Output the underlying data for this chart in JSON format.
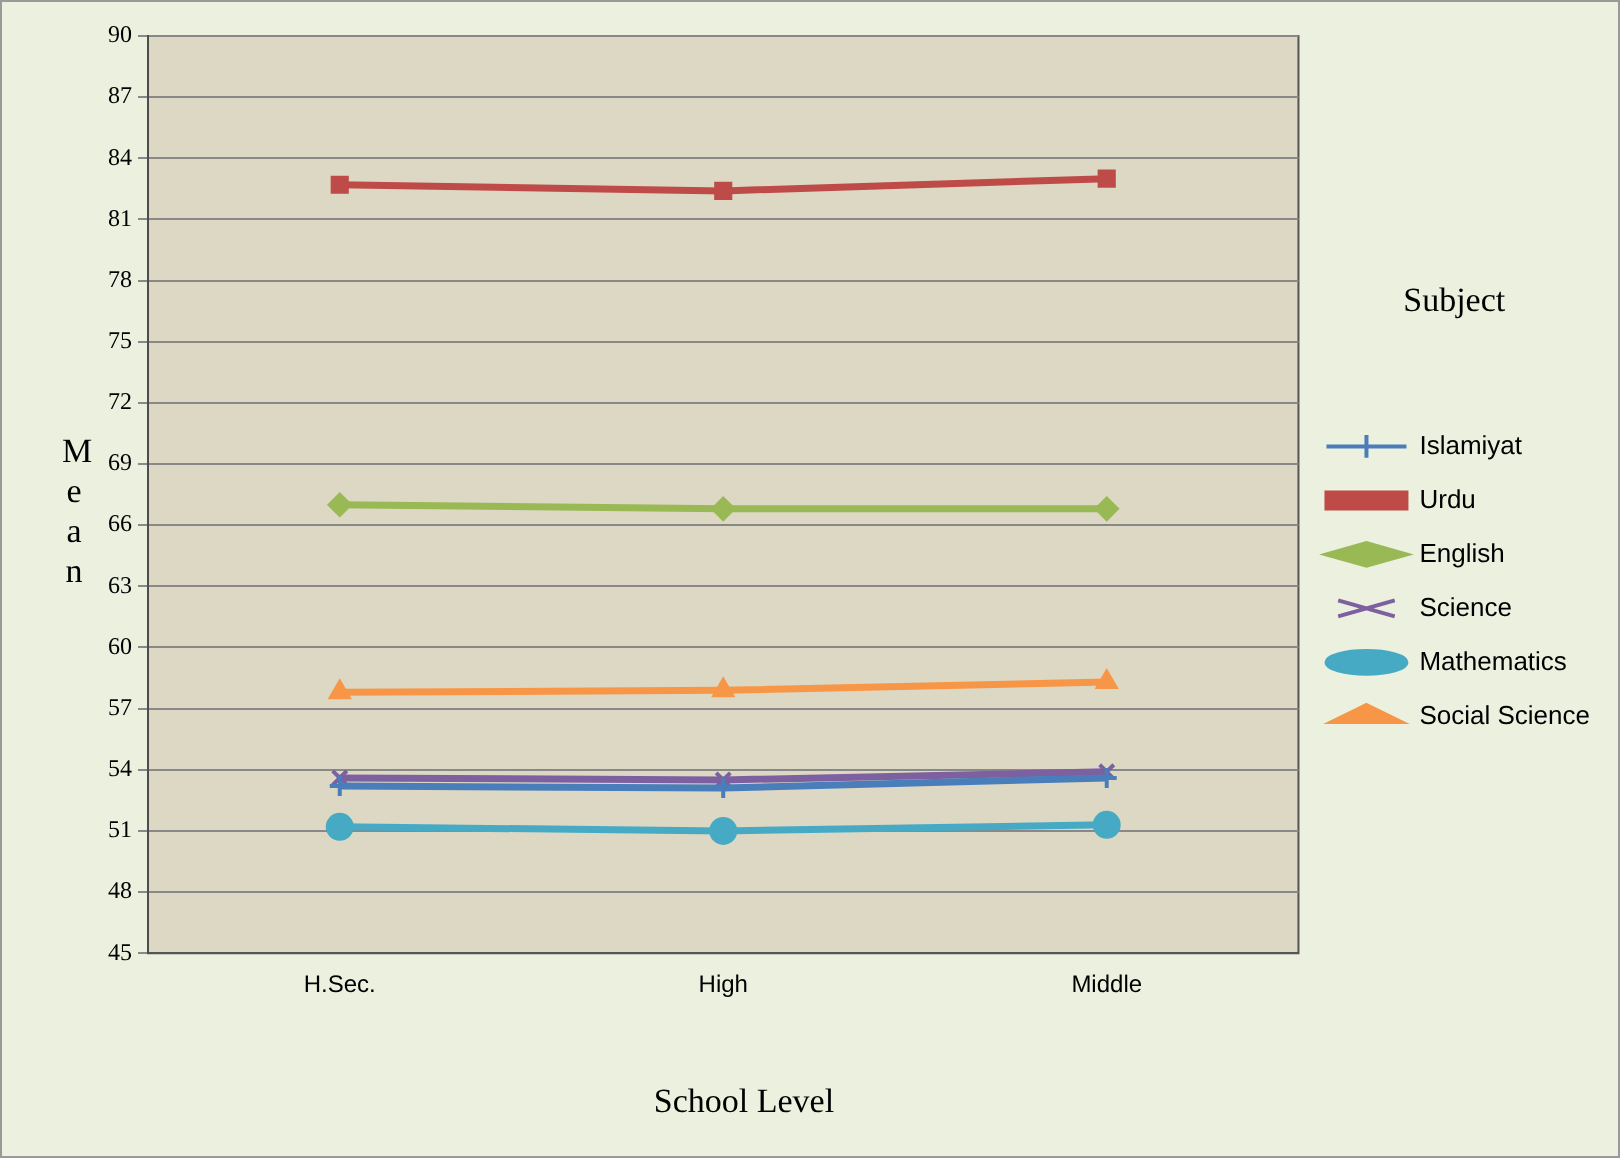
{
  "chart_data": {
    "type": "line",
    "xlabel": "School Level",
    "ylabel": "Mean",
    "legend_title": "Subject",
    "categories": [
      "H.Sec.",
      "High",
      "Middle"
    ],
    "series": [
      {
        "name": "Islamiyat",
        "color": "#4a7ebb",
        "marker": "cross",
        "values": [
          53.2,
          53.1,
          53.6
        ]
      },
      {
        "name": "Urdu",
        "color": "#be4b48",
        "marker": "square",
        "values": [
          82.7,
          82.4,
          83.0
        ]
      },
      {
        "name": "English",
        "color": "#98b954",
        "marker": "diamond",
        "values": [
          67.0,
          66.8,
          66.8
        ]
      },
      {
        "name": "Science",
        "color": "#7d60a0",
        "marker": "cross",
        "values": [
          53.6,
          53.5,
          53.9
        ]
      },
      {
        "name": "Mathematics",
        "color": "#46aac5",
        "marker": "circle",
        "values": [
          51.2,
          51.0,
          51.3
        ]
      },
      {
        "name": "Social Science",
        "color": "#f79646",
        "marker": "triangle",
        "values": [
          57.8,
          57.9,
          58.3
        ]
      }
    ],
    "ylim": [
      45,
      90
    ],
    "yticks": [
      45,
      48,
      51,
      54,
      57,
      60,
      63,
      66,
      69,
      72,
      75,
      78,
      81,
      84,
      87,
      90
    ],
    "grid": "y",
    "legend": "right",
    "line_style": "solid"
  }
}
